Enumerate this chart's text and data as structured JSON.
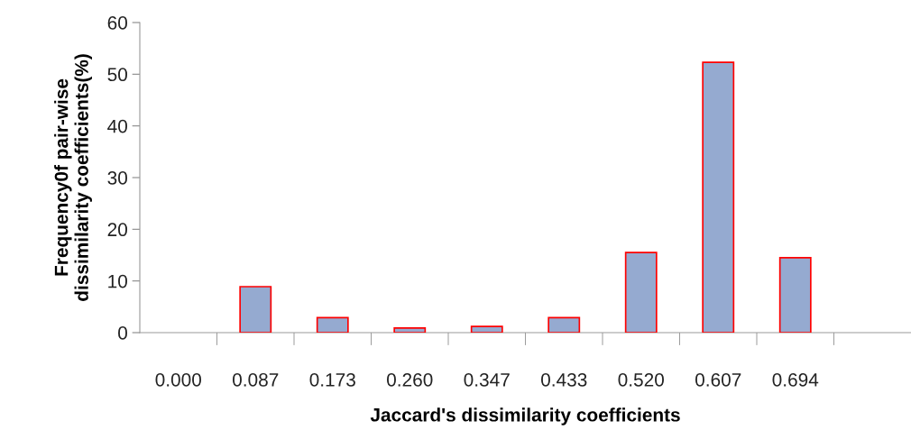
{
  "chart_data": {
    "type": "bar",
    "xlabel": "Jaccard's dissimilarity coefficients",
    "ylabel": "Frequency0f pair-wise\ndissimilarity coefficients(%)",
    "categories": [
      "0.000",
      "0.087",
      "0.173",
      "0.260",
      "0.347",
      "0.433",
      "0.520",
      "0.607",
      "0.694",
      null
    ],
    "values": [
      null,
      8.9,
      2.9,
      0.9,
      1.2,
      2.9,
      15.5,
      52.3,
      14.5,
      null
    ],
    "color": "#95aad0",
    "ylim": [
      0,
      60
    ],
    "yticks": [
      0,
      10,
      20,
      30,
      40,
      50,
      60
    ],
    "grid": false
  }
}
